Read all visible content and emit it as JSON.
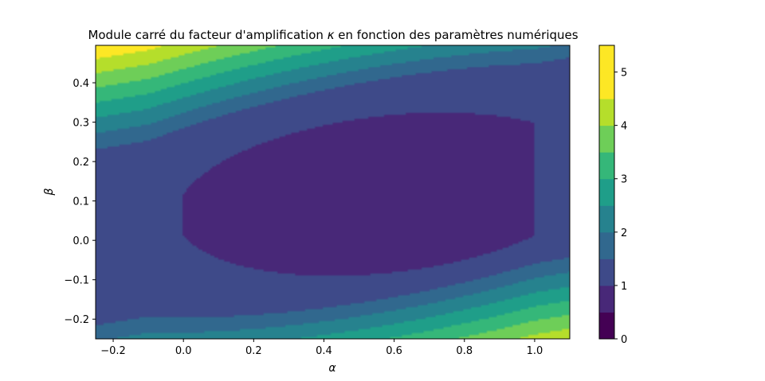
{
  "chart_data": {
    "type": "contourf",
    "title_prefix": "Module carré du facteur d'amplification ",
    "title_symbol": "κ",
    "title_suffix": " en fonction des paramètres numériques",
    "xlabel": "α",
    "ylabel": "β",
    "xlim": [
      -0.25,
      1.1
    ],
    "ylim": [
      -0.25,
      0.495
    ],
    "xticks": [
      -0.2,
      0.0,
      0.2,
      0.4,
      0.6,
      0.8,
      1.0
    ],
    "xtick_labels": [
      "−0.2",
      "0.0",
      "0.2",
      "0.4",
      "0.6",
      "0.8",
      "1.0"
    ],
    "yticks": [
      -0.2,
      -0.1,
      0.0,
      0.1,
      0.2,
      0.3,
      0.4
    ],
    "ytick_labels": [
      "−0.2",
      "−0.1",
      "0.0",
      "0.1",
      "0.2",
      "0.3",
      "0.4"
    ],
    "levels": [
      0,
      0.5,
      1,
      1.5,
      2,
      2.5,
      3,
      3.5,
      4,
      4.5,
      5,
      5.5
    ],
    "level_colors": [
      "#440154",
      "#482878",
      "#3e4a89",
      "#31688e",
      "#26828e",
      "#1f9e89",
      "#35b779",
      "#6ece58",
      "#b5de2b",
      "#fde725",
      "#fde725"
    ],
    "colorbar_ticks": [
      0,
      1,
      2,
      3,
      4,
      5
    ],
    "colorbar_tick_labels": [
      "0",
      "1",
      "2",
      "3",
      "4",
      "5"
    ],
    "stable_region_level": [
      0.5,
      1.0
    ],
    "colormap": "viridis"
  }
}
